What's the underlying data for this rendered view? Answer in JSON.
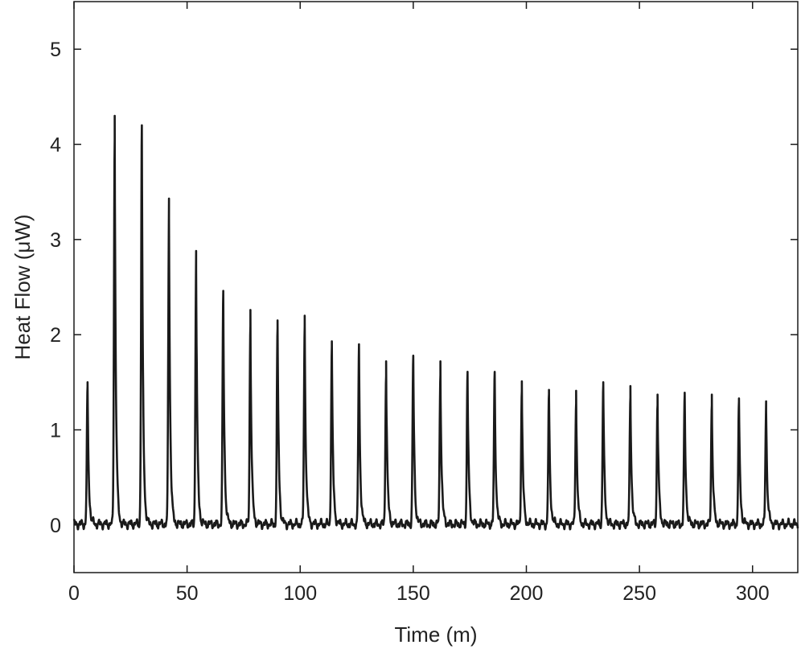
{
  "chart_data": {
    "type": "line",
    "title": "",
    "xlabel": "Time (m)",
    "ylabel": "Heat Flow (μW)",
    "xlim": [
      0,
      320
    ],
    "ylim": [
      -0.5,
      5.5
    ],
    "xticks": [
      0,
      50,
      100,
      150,
      200,
      250,
      300
    ],
    "yticks": [
      0,
      1,
      2,
      3,
      4,
      5
    ],
    "grid": false,
    "legend": "none",
    "line_color": "#1a1a1a",
    "baseline": 0.03,
    "noise_amplitude": 0.05,
    "peaks": [
      {
        "x": 6,
        "y": 1.5
      },
      {
        "x": 18,
        "y": 4.3
      },
      {
        "x": 30,
        "y": 4.2
      },
      {
        "x": 42,
        "y": 3.43
      },
      {
        "x": 54,
        "y": 2.88
      },
      {
        "x": 66,
        "y": 2.46
      },
      {
        "x": 78,
        "y": 2.26
      },
      {
        "x": 90,
        "y": 2.15
      },
      {
        "x": 102,
        "y": 2.2
      },
      {
        "x": 114,
        "y": 1.93
      },
      {
        "x": 126,
        "y": 1.9
      },
      {
        "x": 138,
        "y": 1.72
      },
      {
        "x": 150,
        "y": 1.78
      },
      {
        "x": 162,
        "y": 1.72
      },
      {
        "x": 174,
        "y": 1.61
      },
      {
        "x": 186,
        "y": 1.61
      },
      {
        "x": 198,
        "y": 1.51
      },
      {
        "x": 210,
        "y": 1.42
      },
      {
        "x": 222,
        "y": 1.41
      },
      {
        "x": 234,
        "y": 1.5
      },
      {
        "x": 246,
        "y": 1.46
      },
      {
        "x": 258,
        "y": 1.37
      },
      {
        "x": 270,
        "y": 1.39
      },
      {
        "x": 282,
        "y": 1.37
      },
      {
        "x": 294,
        "y": 1.33
      },
      {
        "x": 306,
        "y": 1.3
      }
    ],
    "x_end": 320
  }
}
